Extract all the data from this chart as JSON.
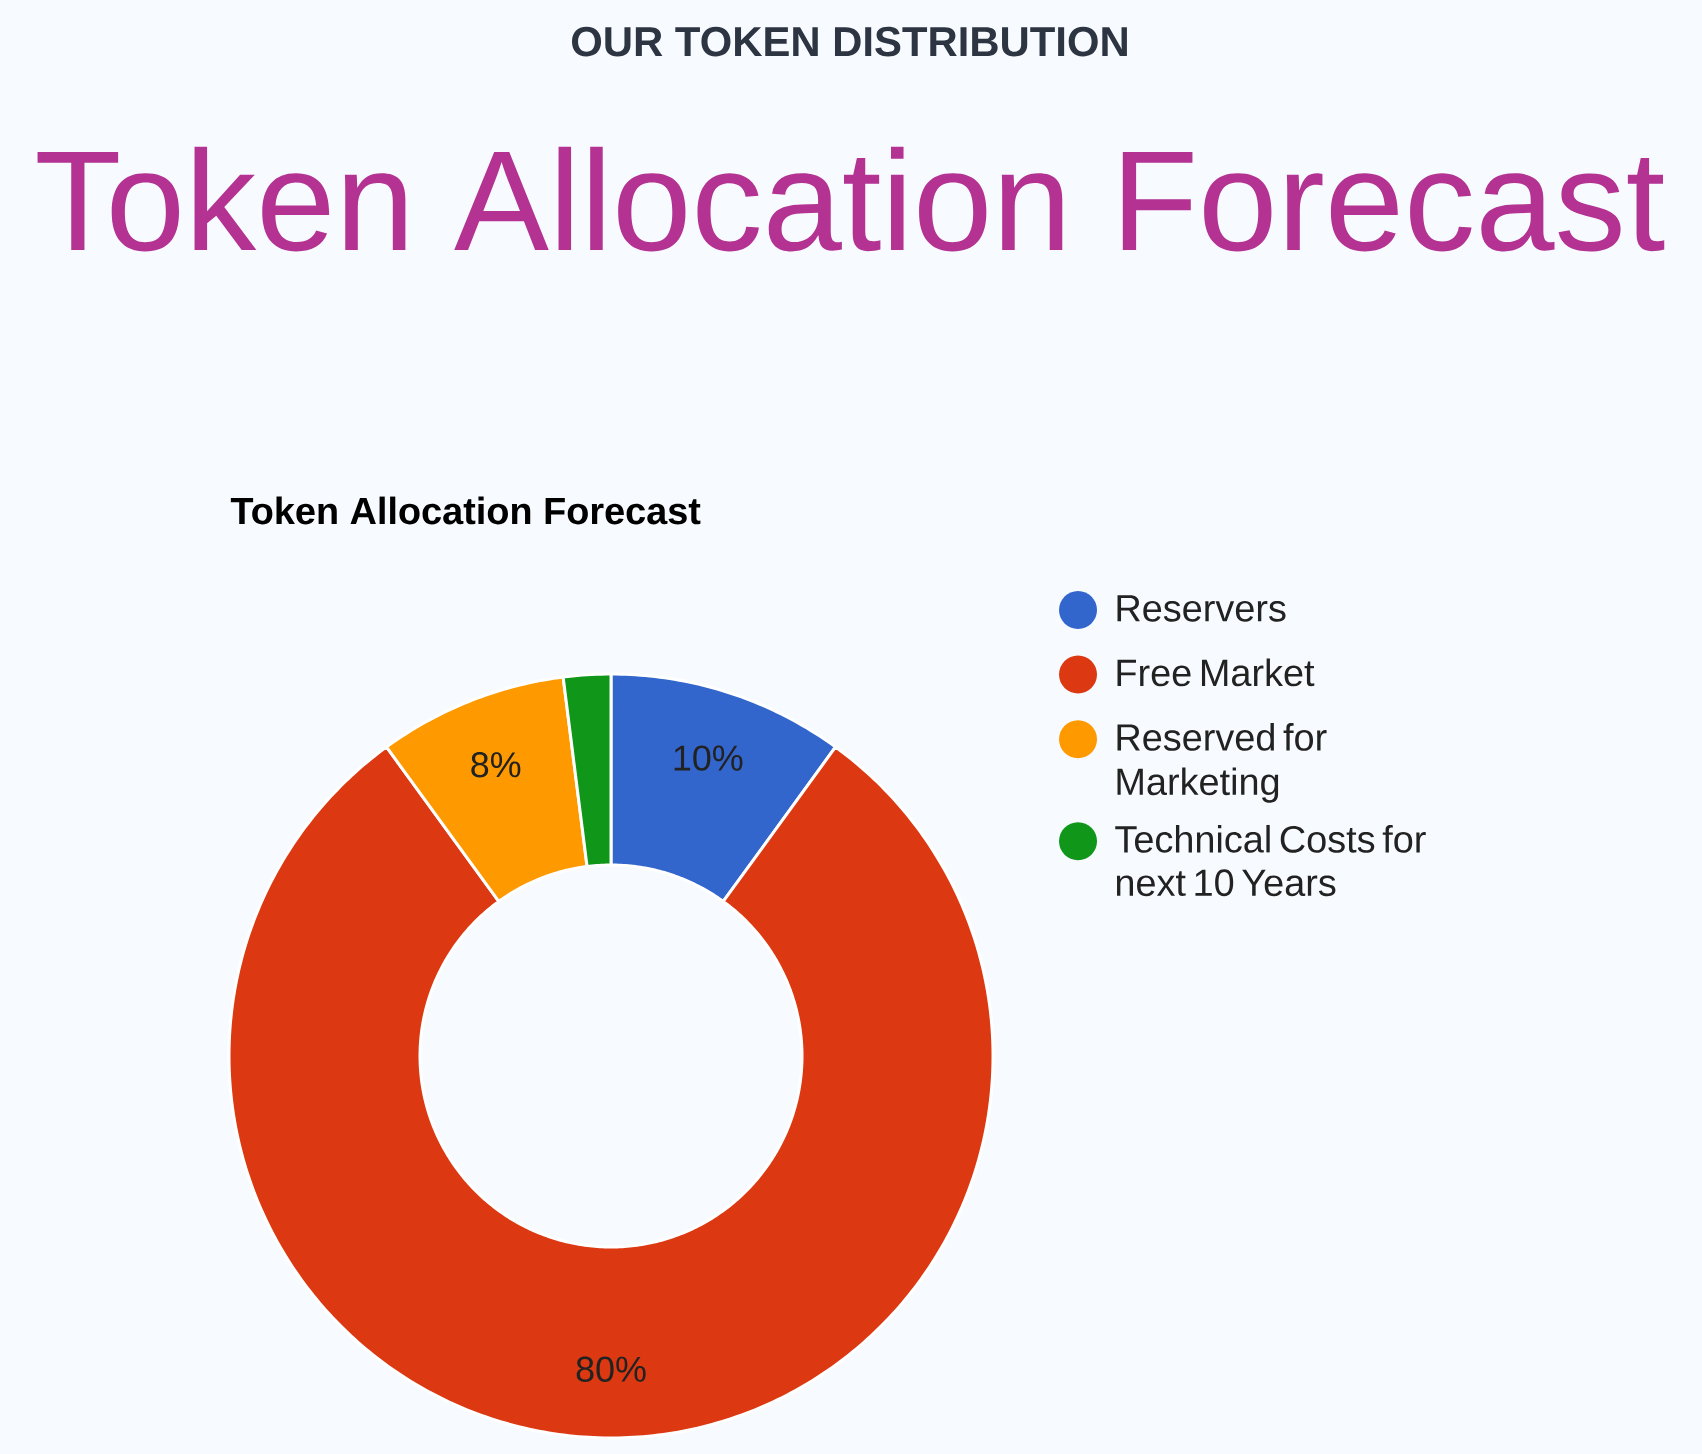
{
  "chart_data": {
    "type": "donut",
    "annotations": [
      "OUR TOKEN DISTRIBUTION"
    ],
    "title": "Token Allocation Forecast",
    "subtitle": "Token Allocation Forecast",
    "categories": [
      "Reservers",
      "Free Market",
      "Reserved for Marketing",
      "Technical Costs for next 10 Years"
    ],
    "values": [
      10,
      80,
      8,
      2
    ],
    "colors": [
      "#3366cc",
      "#dc3912",
      "#ff9900",
      "#109618"
    ],
    "value_labels": [
      "10%",
      "80%",
      "8%",
      null
    ],
    "legend": "right"
  }
}
